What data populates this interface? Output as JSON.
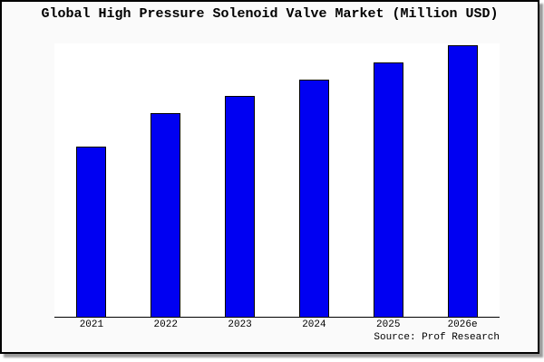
{
  "window": {
    "background_color": "#fafafa",
    "plot_background_color": "#ffffff",
    "frame_border_color": "#000000",
    "frame_shadow_color": "#999999"
  },
  "chart_data": {
    "type": "bar",
    "title": "Global High Pressure Solenoid Valve Market (Million USD)",
    "categories": [
      "2021",
      "2022",
      "2023",
      "2024",
      "2025",
      "2026e"
    ],
    "values": [
      188,
      225,
      244,
      262,
      281,
      300
    ],
    "values_note": "No y-axis, gridlines or data labels are shown in the image; values are relative bar heights (pixels) read from the chart.",
    "unit": "Million USD",
    "xlabel": "",
    "ylabel": "",
    "ylim": [
      0,
      302
    ],
    "grid": false,
    "legend": false,
    "y_axis_visible": false,
    "x_axis_visible": true,
    "bar_color": "#0000f2",
    "bar_border_color": "#000000",
    "source": "Source: Prof Research"
  }
}
